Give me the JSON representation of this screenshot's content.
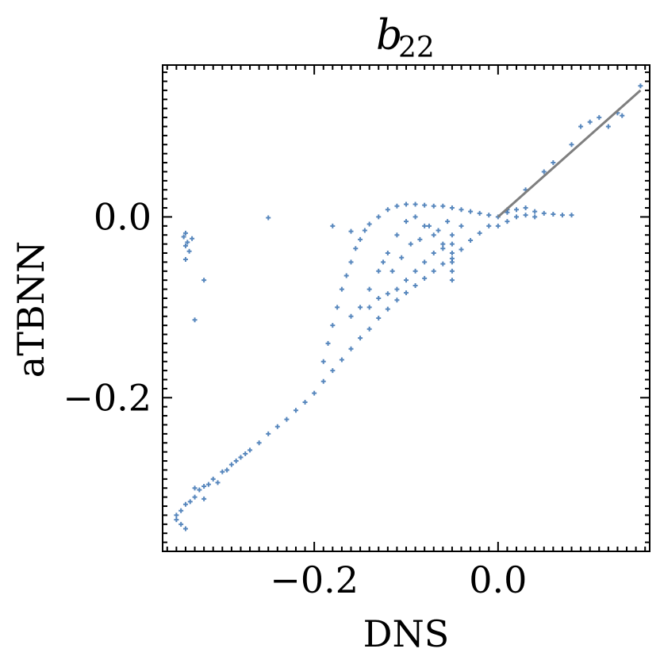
{
  "chart_data": {
    "type": "scatter",
    "title": "b",
    "title_subscript": "22",
    "xlabel": "DNS",
    "ylabel": "aTBNN",
    "xlim": [
      -0.365,
      0.165
    ],
    "ylim": [
      -0.37,
      0.168
    ],
    "x_ticks": [
      {
        "value": -0.2,
        "label": "−0.2"
      },
      {
        "value": 0.0,
        "label": "0.0"
      }
    ],
    "y_ticks": [
      {
        "value": -0.2,
        "label": "−0.2"
      },
      {
        "value": 0.0,
        "label": "0.0"
      }
    ],
    "minor_tick_step": 0.05,
    "grid": false,
    "reference_line": {
      "x": [
        0.0,
        0.155
      ],
      "y": [
        0.0,
        0.14
      ],
      "color": "#7f7f7f"
    },
    "series": [
      {
        "color": "#1f5fa8",
        "marker": "+",
        "points": [
          [
            -0.35,
            -0.33
          ],
          [
            -0.345,
            -0.325
          ],
          [
            -0.34,
            -0.318
          ],
          [
            -0.335,
            -0.315
          ],
          [
            -0.33,
            -0.31
          ],
          [
            -0.325,
            -0.302
          ],
          [
            -0.32,
            -0.298
          ],
          [
            -0.31,
            -0.29
          ],
          [
            -0.3,
            -0.282
          ],
          [
            -0.29,
            -0.274
          ],
          [
            -0.28,
            -0.266
          ],
          [
            -0.27,
            -0.258
          ],
          [
            -0.26,
            -0.25
          ],
          [
            -0.25,
            -0.24
          ],
          [
            -0.24,
            -0.232
          ],
          [
            -0.23,
            -0.224
          ],
          [
            -0.22,
            -0.214
          ],
          [
            -0.21,
            -0.205
          ],
          [
            -0.2,
            -0.195
          ],
          [
            -0.19,
            -0.182
          ],
          [
            -0.18,
            -0.17
          ],
          [
            -0.17,
            -0.158
          ],
          [
            -0.16,
            -0.146
          ],
          [
            -0.15,
            -0.134
          ],
          [
            -0.14,
            -0.124
          ],
          [
            -0.13,
            -0.112
          ],
          [
            -0.12,
            -0.102
          ],
          [
            -0.11,
            -0.092
          ],
          [
            -0.1,
            -0.084
          ],
          [
            -0.09,
            -0.076
          ],
          [
            -0.08,
            -0.068
          ],
          [
            -0.07,
            -0.06
          ],
          [
            -0.06,
            -0.052
          ],
          [
            -0.05,
            -0.046
          ],
          [
            -0.04,
            -0.036
          ],
          [
            -0.03,
            -0.026
          ],
          [
            -0.02,
            -0.018
          ],
          [
            -0.01,
            -0.01
          ],
          [
            0.0,
            0.0
          ],
          [
            0.01,
            0.008
          ],
          [
            -0.345,
            -0.34
          ],
          [
            -0.35,
            -0.335
          ],
          [
            -0.34,
            -0.345
          ],
          [
            -0.33,
            -0.3
          ],
          [
            -0.32,
            -0.312
          ],
          [
            -0.315,
            -0.296
          ],
          [
            -0.305,
            -0.294
          ],
          [
            -0.295,
            -0.28
          ],
          [
            -0.285,
            -0.27
          ],
          [
            -0.275,
            -0.262
          ],
          [
            -0.19,
            -0.16
          ],
          [
            -0.185,
            -0.14
          ],
          [
            -0.18,
            -0.12
          ],
          [
            -0.175,
            -0.1
          ],
          [
            -0.17,
            -0.08
          ],
          [
            -0.165,
            -0.065
          ],
          [
            -0.16,
            -0.05
          ],
          [
            -0.155,
            -0.035
          ],
          [
            -0.15,
            -0.025
          ],
          [
            -0.145,
            -0.015
          ],
          [
            -0.14,
            -0.008
          ],
          [
            -0.13,
            0.0
          ],
          [
            -0.12,
            0.008
          ],
          [
            -0.11,
            0.012
          ],
          [
            -0.1,
            0.014
          ],
          [
            -0.09,
            0.014
          ],
          [
            -0.08,
            0.013
          ],
          [
            -0.07,
            0.012
          ],
          [
            -0.06,
            0.012
          ],
          [
            -0.05,
            0.01
          ],
          [
            -0.04,
            0.008
          ],
          [
            -0.03,
            0.006
          ],
          [
            -0.02,
            0.004
          ],
          [
            -0.01,
            0.002
          ],
          [
            -0.16,
            -0.11
          ],
          [
            -0.15,
            -0.1
          ],
          [
            -0.14,
            -0.08
          ],
          [
            -0.13,
            -0.06
          ],
          [
            -0.12,
            -0.04
          ],
          [
            -0.11,
            -0.02
          ],
          [
            -0.1,
            -0.005
          ],
          [
            -0.09,
            0.0
          ],
          [
            -0.08,
            -0.01
          ],
          [
            -0.07,
            -0.02
          ],
          [
            -0.06,
            -0.03
          ],
          [
            -0.05,
            -0.02
          ],
          [
            -0.04,
            -0.01
          ],
          [
            -0.14,
            -0.1
          ],
          [
            -0.13,
            -0.09
          ],
          [
            -0.12,
            -0.085
          ],
          [
            -0.11,
            -0.08
          ],
          [
            -0.1,
            -0.07
          ],
          [
            -0.09,
            -0.06
          ],
          [
            -0.08,
            -0.05
          ],
          [
            -0.07,
            -0.04
          ],
          [
            -0.06,
            -0.035
          ],
          [
            -0.05,
            -0.03
          ],
          [
            -0.125,
            -0.05
          ],
          [
            -0.115,
            -0.06
          ],
          [
            -0.105,
            -0.045
          ],
          [
            -0.095,
            -0.03
          ],
          [
            -0.085,
            -0.025
          ],
          [
            -0.075,
            -0.01
          ],
          [
            -0.065,
            -0.015
          ],
          [
            -0.055,
            -0.005
          ],
          [
            -0.05,
            -0.07
          ],
          [
            -0.05,
            -0.06
          ],
          [
            -0.05,
            -0.05
          ],
          [
            -0.05,
            -0.04
          ],
          [
            0.01,
            0.005
          ],
          [
            0.02,
            0.008
          ],
          [
            0.03,
            0.01
          ],
          [
            0.04,
            0.006
          ],
          [
            0.05,
            0.004
          ],
          [
            0.06,
            0.003
          ],
          [
            0.07,
            0.002
          ],
          [
            0.08,
            0.002
          ],
          [
            0.0,
            -0.01
          ],
          [
            0.01,
            -0.005
          ],
          [
            0.02,
            0.0
          ],
          [
            0.03,
            0.002
          ],
          [
            0.04,
            0.0
          ],
          [
            0.03,
            0.03
          ],
          [
            0.05,
            0.05
          ],
          [
            0.06,
            0.06
          ],
          [
            0.08,
            0.08
          ],
          [
            0.09,
            0.1
          ],
          [
            0.1,
            0.105
          ],
          [
            0.11,
            0.11
          ],
          [
            0.12,
            0.1
          ],
          [
            0.13,
            0.115
          ],
          [
            0.135,
            0.112
          ],
          [
            0.155,
            0.145
          ],
          [
            -0.34,
            -0.018
          ],
          [
            -0.342,
            -0.022
          ],
          [
            -0.338,
            -0.028
          ],
          [
            -0.34,
            -0.032
          ],
          [
            -0.336,
            -0.038
          ],
          [
            -0.34,
            -0.047
          ],
          [
            -0.333,
            -0.024
          ],
          [
            -0.32,
            -0.07
          ],
          [
            -0.33,
            -0.114
          ],
          [
            -0.25,
            -0.001
          ],
          [
            -0.18,
            -0.01
          ],
          [
            -0.16,
            -0.016
          ]
        ]
      }
    ]
  }
}
